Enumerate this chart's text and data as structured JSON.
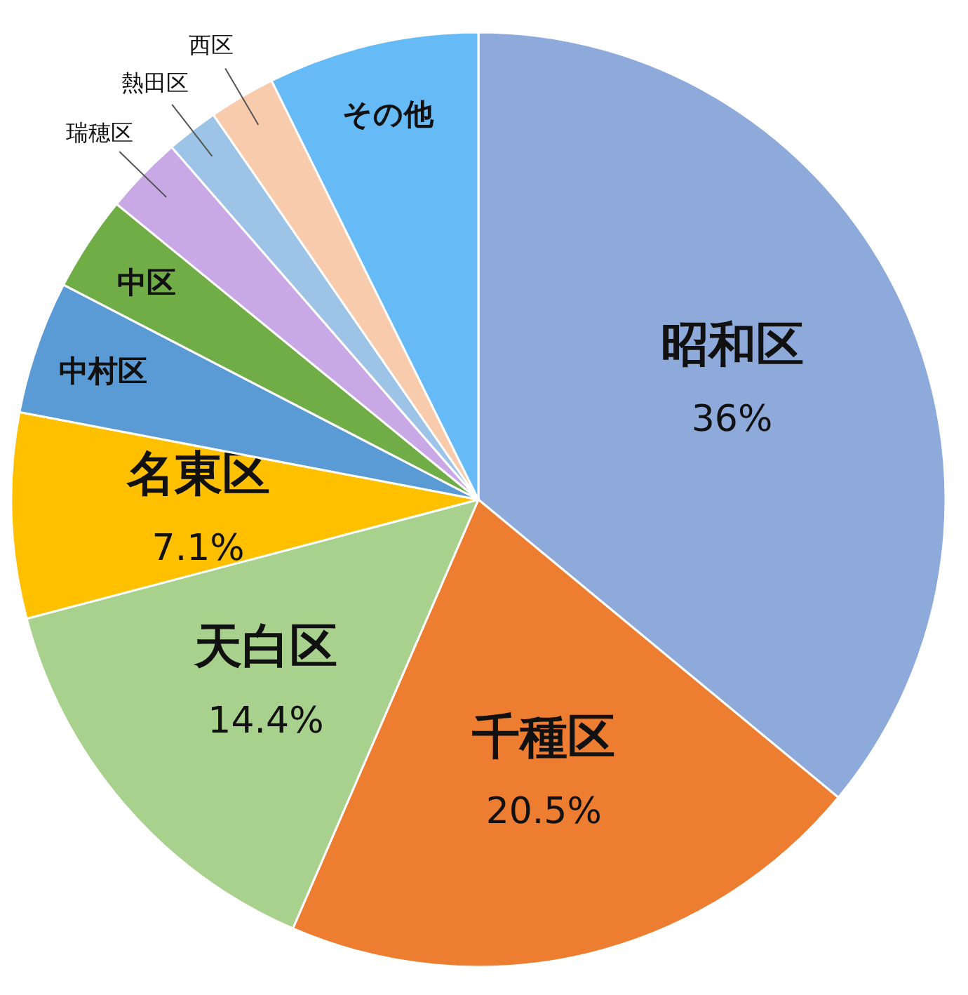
{
  "chart_data": {
    "type": "pie",
    "categories": [
      "昭和区",
      "千種区",
      "天白区",
      "名東区",
      "中村区",
      "中区",
      "瑞穂区",
      "熱田区",
      "西区",
      "その他"
    ],
    "values": [
      36,
      20.5,
      14.4,
      7.1,
      4.6,
      3.3,
      2.7,
      1.8,
      2.3,
      7.3
    ],
    "value_labels": [
      "36%",
      "20.5%",
      "14.4%",
      "7.1%",
      null,
      null,
      null,
      null,
      null,
      null
    ],
    "colors": [
      "#8eaadb",
      "#ed7d31",
      "#a9d18e",
      "#ffc000",
      "#5b9bd5",
      "#70ad47",
      "#c9a8e6",
      "#9dc3e6",
      "#f8cbad",
      "#66bbf7"
    ]
  }
}
